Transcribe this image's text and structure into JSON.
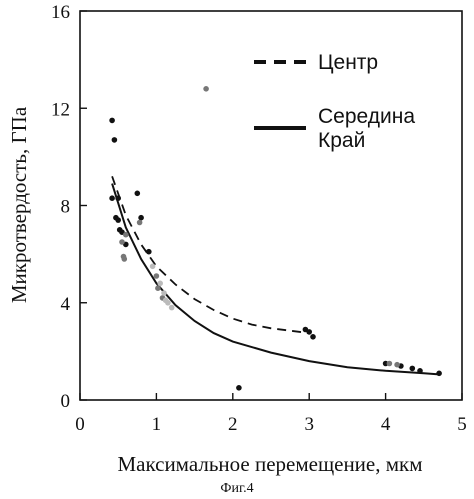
{
  "chart_data": {
    "type": "scatter",
    "xlabel": "Максимальное перемещение, мкм",
    "ylabel": "Микротвердость, ГПа",
    "xlim": [
      0,
      5
    ],
    "ylim": [
      0,
      16
    ],
    "x_ticks": [
      "0",
      "1",
      "2",
      "3",
      "4",
      "5"
    ],
    "y_ticks": [
      "0",
      "4",
      "8",
      "12",
      "16"
    ],
    "grid": false,
    "legend_position": "top-right",
    "legend": [
      {
        "label": "Центр",
        "style": "dashed"
      },
      {
        "label": "Середина",
        "style": "none"
      },
      {
        "label": "Край",
        "style": "solid"
      }
    ],
    "series": [
      {
        "name": "Центр",
        "color": "#111111",
        "points": [
          [
            0.42,
            11.5
          ],
          [
            0.45,
            10.7
          ],
          [
            0.42,
            8.3
          ],
          [
            0.5,
            8.3
          ],
          [
            0.47,
            7.5
          ],
          [
            0.5,
            7.4
          ],
          [
            0.52,
            7.0
          ],
          [
            0.55,
            6.9
          ],
          [
            0.6,
            6.4
          ],
          [
            0.75,
            8.5
          ],
          [
            0.8,
            7.5
          ],
          [
            0.9,
            6.1
          ],
          [
            2.08,
            0.5
          ],
          [
            2.95,
            2.9
          ],
          [
            3.0,
            2.8
          ],
          [
            3.05,
            2.6
          ],
          [
            4.0,
            1.5
          ],
          [
            4.2,
            1.4
          ],
          [
            4.35,
            1.3
          ],
          [
            4.45,
            1.2
          ],
          [
            4.7,
            1.1
          ]
        ]
      },
      {
        "name": "Середина",
        "color": "#777777",
        "points": [
          [
            1.65,
            12.8
          ],
          [
            0.55,
            6.5
          ],
          [
            0.57,
            5.9
          ],
          [
            0.6,
            6.8
          ],
          [
            0.58,
            5.8
          ],
          [
            0.78,
            7.3
          ],
          [
            1.0,
            5.1
          ],
          [
            1.02,
            4.6
          ],
          [
            1.08,
            4.2
          ],
          [
            4.05,
            1.5
          ],
          [
            4.15,
            1.45
          ]
        ]
      },
      {
        "name": "Край",
        "color": "#bbbbbb",
        "points": [
          [
            0.95,
            5.5
          ],
          [
            1.05,
            4.8
          ],
          [
            1.1,
            4.4
          ],
          [
            1.15,
            4.0
          ],
          [
            1.2,
            3.8
          ],
          [
            1.12,
            4.1
          ]
        ]
      }
    ],
    "curves": [
      {
        "name": "Центр",
        "style": "dashed",
        "points": [
          [
            0.42,
            9.2
          ],
          [
            0.6,
            7.6
          ],
          [
            0.8,
            6.4
          ],
          [
            1.0,
            5.5
          ],
          [
            1.25,
            4.75
          ],
          [
            1.5,
            4.15
          ],
          [
            1.75,
            3.7
          ],
          [
            2.0,
            3.35
          ],
          [
            2.25,
            3.1
          ],
          [
            2.5,
            2.95
          ],
          [
            2.75,
            2.85
          ],
          [
            3.0,
            2.75
          ]
        ]
      },
      {
        "name": "Край",
        "style": "solid",
        "points": [
          [
            0.42,
            8.9
          ],
          [
            0.6,
            7.1
          ],
          [
            0.8,
            5.8
          ],
          [
            1.0,
            4.8
          ],
          [
            1.25,
            3.9
          ],
          [
            1.5,
            3.25
          ],
          [
            1.75,
            2.75
          ],
          [
            2.0,
            2.4
          ],
          [
            2.5,
            1.95
          ],
          [
            3.0,
            1.6
          ],
          [
            3.5,
            1.35
          ],
          [
            4.0,
            1.2
          ],
          [
            4.5,
            1.1
          ],
          [
            4.72,
            1.05
          ]
        ]
      }
    ]
  },
  "caption": "Фиг.4"
}
